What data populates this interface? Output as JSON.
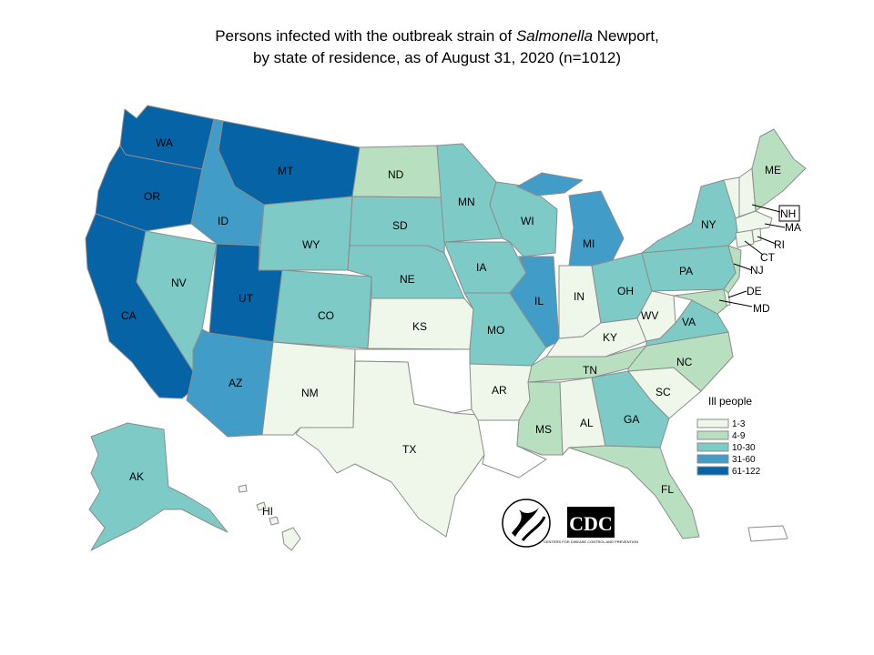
{
  "title": {
    "line1_prefix": "Persons infected with the outbreak strain of ",
    "line1_italic": "Salmonella",
    "line1_suffix": " Newport,",
    "line2": "by state of residence, as of August 31, 2020 (n=1012)"
  },
  "legend": {
    "title": "Ill people",
    "bins": [
      {
        "label": "1-3",
        "color": "#eef7e9"
      },
      {
        "label": "4-9",
        "color": "#b8e0c0"
      },
      {
        "label": "10-30",
        "color": "#7dcac7"
      },
      {
        "label": "31-60",
        "color": "#419dc8"
      },
      {
        "label": "61-122",
        "color": "#0563a6"
      }
    ]
  },
  "no_case_color": "#ffffff",
  "states": [
    {
      "abbr": "WA",
      "bin": 4
    },
    {
      "abbr": "OR",
      "bin": 4
    },
    {
      "abbr": "CA",
      "bin": 4
    },
    {
      "abbr": "MT",
      "bin": 4
    },
    {
      "abbr": "UT",
      "bin": 4
    },
    {
      "abbr": "ID",
      "bin": 3
    },
    {
      "abbr": "AZ",
      "bin": 3
    },
    {
      "abbr": "MI",
      "bin": 3
    },
    {
      "abbr": "IL",
      "bin": 3
    },
    {
      "abbr": "NV",
      "bin": 2
    },
    {
      "abbr": "WY",
      "bin": 2
    },
    {
      "abbr": "CO",
      "bin": 2
    },
    {
      "abbr": "SD",
      "bin": 2
    },
    {
      "abbr": "NE",
      "bin": 2
    },
    {
      "abbr": "MN",
      "bin": 2
    },
    {
      "abbr": "IA",
      "bin": 2
    },
    {
      "abbr": "MO",
      "bin": 2
    },
    {
      "abbr": "WI",
      "bin": 2
    },
    {
      "abbr": "OH",
      "bin": 2
    },
    {
      "abbr": "NY",
      "bin": 2
    },
    {
      "abbr": "PA",
      "bin": 2
    },
    {
      "abbr": "VA",
      "bin": 2
    },
    {
      "abbr": "GA",
      "bin": 2
    },
    {
      "abbr": "AK",
      "bin": 2
    },
    {
      "abbr": "ND",
      "bin": 1
    },
    {
      "abbr": "TN",
      "bin": 1
    },
    {
      "abbr": "NC",
      "bin": 1
    },
    {
      "abbr": "MS",
      "bin": 1
    },
    {
      "abbr": "FL",
      "bin": 1
    },
    {
      "abbr": "ME",
      "bin": 1
    },
    {
      "abbr": "NJ",
      "bin": 1
    },
    {
      "abbr": "MD",
      "bin": 1
    },
    {
      "abbr": "NM",
      "bin": 0
    },
    {
      "abbr": "TX",
      "bin": 0
    },
    {
      "abbr": "KS",
      "bin": 0
    },
    {
      "abbr": "AR",
      "bin": 0
    },
    {
      "abbr": "IN",
      "bin": 0
    },
    {
      "abbr": "KY",
      "bin": 0
    },
    {
      "abbr": "WV",
      "bin": 0
    },
    {
      "abbr": "AL",
      "bin": 0
    },
    {
      "abbr": "SC",
      "bin": 0
    },
    {
      "abbr": "HI",
      "bin": 0
    },
    {
      "abbr": "NH",
      "bin": 0
    },
    {
      "abbr": "MA",
      "bin": 0
    },
    {
      "abbr": "CT",
      "bin": 0
    },
    {
      "abbr": "VT",
      "bin": 0
    },
    {
      "abbr": "DE",
      "bin": 0
    },
    {
      "abbr": "RI",
      "bin": 0
    },
    {
      "abbr": "OK",
      "bin": -1
    },
    {
      "abbr": "LA",
      "bin": -1
    },
    {
      "abbr": "PR",
      "bin": -1
    }
  ],
  "logos": {
    "hhs_icon": "hhs-eagle-seal",
    "cdc_text": "CDC",
    "cdc_small": "CENTERS FOR DISEASE CONTROL AND PREVENTION"
  }
}
